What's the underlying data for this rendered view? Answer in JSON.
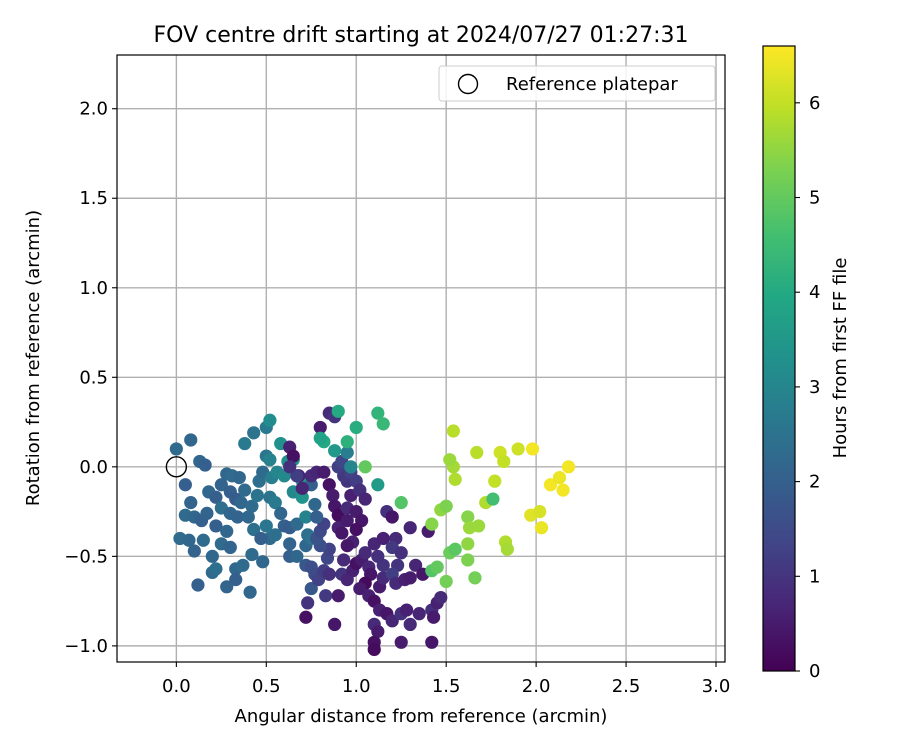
{
  "chart_data": {
    "type": "scatter",
    "title": "FOV centre drift starting at 2024/07/27 01:27:31",
    "xlabel": "Angular distance from reference (arcmin)",
    "ylabel": "Rotation from reference (arcmin)",
    "xlim": [
      -0.33,
      3.05
    ],
    "ylim": [
      -1.09,
      2.3
    ],
    "x_ticks": [
      0.0,
      0.5,
      1.0,
      1.5,
      2.0,
      2.5,
      3.0
    ],
    "x_tick_labels": [
      "0.0",
      "0.5",
      "1.0",
      "1.5",
      "2.0",
      "2.5",
      "3.0"
    ],
    "y_ticks": [
      -1.0,
      -0.5,
      0.0,
      0.5,
      1.0,
      1.5,
      2.0
    ],
    "y_tick_labels": [
      "−1.0",
      "−0.5",
      "0.0",
      "0.5",
      "1.0",
      "1.5",
      "2.0"
    ],
    "grid": true,
    "legend": {
      "placement": "upper right",
      "entries": [
        {
          "name": "Reference platepar",
          "marker": "open-circle"
        }
      ]
    },
    "reference_point": {
      "x": 0.0,
      "y": 0.0
    },
    "colorbar": {
      "label": "Hours from first FF file",
      "range": [
        0,
        6.6
      ],
      "ticks": [
        0,
        1,
        2,
        3,
        4,
        5,
        6
      ],
      "tick_labels": [
        "0",
        "1",
        "2",
        "3",
        "4",
        "5",
        "6"
      ],
      "colormap": "viridis",
      "stops": [
        "#440154",
        "#482475",
        "#414487",
        "#355f8d",
        "#2a788e",
        "#21918c",
        "#22a884",
        "#44bf70",
        "#7ad151",
        "#bddf26",
        "#fde725"
      ]
    },
    "points": [
      {
        "x": 0.0,
        "y": 0.1,
        "h": 2.3
      },
      {
        "x": 0.08,
        "y": 0.15,
        "h": 2.2
      },
      {
        "x": 0.13,
        "y": 0.03,
        "h": 2.2
      },
      {
        "x": 0.16,
        "y": 0.01,
        "h": 2.0
      },
      {
        "x": 0.05,
        "y": -0.1,
        "h": 2.0
      },
      {
        "x": 0.08,
        "y": -0.2,
        "h": 2.1
      },
      {
        "x": 0.05,
        "y": -0.27,
        "h": 2.3
      },
      {
        "x": 0.1,
        "y": -0.28,
        "h": 2.2
      },
      {
        "x": 0.02,
        "y": -0.4,
        "h": 2.3
      },
      {
        "x": 0.07,
        "y": -0.41,
        "h": 2.2
      },
      {
        "x": 0.1,
        "y": -0.47,
        "h": 2.1
      },
      {
        "x": 0.12,
        "y": -0.66,
        "h": 2.0
      },
      {
        "x": 0.2,
        "y": -0.59,
        "h": 2.3
      },
      {
        "x": 0.22,
        "y": -0.57,
        "h": 2.4
      },
      {
        "x": 0.15,
        "y": -0.41,
        "h": 2.3
      },
      {
        "x": 0.2,
        "y": -0.5,
        "h": 2.2
      },
      {
        "x": 0.14,
        "y": -0.3,
        "h": 2.0
      },
      {
        "x": 0.17,
        "y": -0.26,
        "h": 2.1
      },
      {
        "x": 0.18,
        "y": -0.14,
        "h": 2.2
      },
      {
        "x": 0.22,
        "y": -0.17,
        "h": 2.0
      },
      {
        "x": 0.25,
        "y": -0.1,
        "h": 2.1
      },
      {
        "x": 0.28,
        "y": -0.04,
        "h": 2.2
      },
      {
        "x": 0.31,
        "y": -0.05,
        "h": 2.3
      },
      {
        "x": 0.35,
        "y": -0.06,
        "h": 2.2
      },
      {
        "x": 0.3,
        "y": -0.14,
        "h": 2.0
      },
      {
        "x": 0.33,
        "y": -0.18,
        "h": 1.9
      },
      {
        "x": 0.36,
        "y": -0.2,
        "h": 2.2
      },
      {
        "x": 0.38,
        "y": -0.13,
        "h": 2.3
      },
      {
        "x": 0.25,
        "y": -0.23,
        "h": 2.4
      },
      {
        "x": 0.3,
        "y": -0.26,
        "h": 2.2
      },
      {
        "x": 0.34,
        "y": -0.28,
        "h": 2.1
      },
      {
        "x": 0.22,
        "y": -0.33,
        "h": 2.0
      },
      {
        "x": 0.28,
        "y": -0.36,
        "h": 2.2
      },
      {
        "x": 0.25,
        "y": -0.43,
        "h": 2.3
      },
      {
        "x": 0.3,
        "y": -0.45,
        "h": 2.1
      },
      {
        "x": 0.33,
        "y": -0.57,
        "h": 2.2
      },
      {
        "x": 0.37,
        "y": -0.55,
        "h": 2.3
      },
      {
        "x": 0.33,
        "y": -0.63,
        "h": 2.0
      },
      {
        "x": 0.28,
        "y": -0.67,
        "h": 2.1
      },
      {
        "x": 0.41,
        "y": -0.7,
        "h": 2.2
      },
      {
        "x": 0.42,
        "y": -0.49,
        "h": 2.3
      },
      {
        "x": 0.43,
        "y": -0.35,
        "h": 2.4
      },
      {
        "x": 0.4,
        "y": -0.28,
        "h": 2.2
      },
      {
        "x": 0.42,
        "y": -0.22,
        "h": 2.3
      },
      {
        "x": 0.45,
        "y": -0.16,
        "h": 2.5
      },
      {
        "x": 0.46,
        "y": -0.08,
        "h": 2.4
      },
      {
        "x": 0.48,
        "y": -0.03,
        "h": 2.3
      },
      {
        "x": 0.5,
        "y": 0.06,
        "h": 2.6
      },
      {
        "x": 0.52,
        "y": 0.04,
        "h": 2.9
      },
      {
        "x": 0.38,
        "y": 0.13,
        "h": 2.7
      },
      {
        "x": 0.43,
        "y": 0.19,
        "h": 2.5
      },
      {
        "x": 0.5,
        "y": 0.22,
        "h": 2.7
      },
      {
        "x": 0.52,
        "y": 0.26,
        "h": 3.2
      },
      {
        "x": 0.58,
        "y": 0.13,
        "h": 3.3
      },
      {
        "x": 0.53,
        "y": -0.06,
        "h": 2.8
      },
      {
        "x": 0.56,
        "y": -0.03,
        "h": 3.0
      },
      {
        "x": 0.6,
        "y": -0.05,
        "h": 3.1
      },
      {
        "x": 0.62,
        "y": 0.03,
        "h": 3.3
      },
      {
        "x": 0.65,
        "y": 0.04,
        "h": 3.4
      },
      {
        "x": 0.52,
        "y": -0.17,
        "h": 2.5
      },
      {
        "x": 0.55,
        "y": -0.2,
        "h": 2.7
      },
      {
        "x": 0.58,
        "y": -0.26,
        "h": 2.2
      },
      {
        "x": 0.5,
        "y": -0.33,
        "h": 2.6
      },
      {
        "x": 0.52,
        "y": -0.4,
        "h": 2.3
      },
      {
        "x": 0.55,
        "y": -0.38,
        "h": 2.4
      },
      {
        "x": 0.47,
        "y": -0.4,
        "h": 2.0
      },
      {
        "x": 0.48,
        "y": -0.53,
        "h": 2.2
      },
      {
        "x": 0.6,
        "y": -0.33,
        "h": 2.0
      },
      {
        "x": 0.63,
        "y": -0.34,
        "h": 1.9
      },
      {
        "x": 0.63,
        "y": -0.43,
        "h": 2.1
      },
      {
        "x": 0.67,
        "y": -0.32,
        "h": 2.3
      },
      {
        "x": 0.63,
        "y": -0.5,
        "h": 2.0
      },
      {
        "x": 0.67,
        "y": -0.5,
        "h": 2.2
      },
      {
        "x": 0.65,
        "y": -0.14,
        "h": 3.1
      },
      {
        "x": 0.7,
        "y": -0.17,
        "h": 3.4
      },
      {
        "x": 0.7,
        "y": -0.08,
        "h": 3.5
      },
      {
        "x": 0.72,
        "y": -0.28,
        "h": 2.9
      },
      {
        "x": 0.73,
        "y": -0.38,
        "h": 2.4
      },
      {
        "x": 0.72,
        "y": -0.44,
        "h": 2.2
      },
      {
        "x": 0.75,
        "y": -0.4,
        "h": 2.5
      },
      {
        "x": 0.72,
        "y": -0.55,
        "h": 1.8
      },
      {
        "x": 0.75,
        "y": -0.56,
        "h": 1.6
      },
      {
        "x": 0.77,
        "y": -0.6,
        "h": 1.5
      },
      {
        "x": 0.75,
        "y": -0.68,
        "h": 1.8
      },
      {
        "x": 0.73,
        "y": -0.76,
        "h": 1.0
      },
      {
        "x": 0.72,
        "y": -0.84,
        "h": 0.3
      },
      {
        "x": 0.79,
        "y": -0.63,
        "h": 1.3
      },
      {
        "x": 0.82,
        "y": -0.58,
        "h": 1.2
      },
      {
        "x": 0.84,
        "y": -0.51,
        "h": 1.4
      },
      {
        "x": 0.83,
        "y": -0.72,
        "h": 1.1
      },
      {
        "x": 0.85,
        "y": -0.6,
        "h": 0.9
      },
      {
        "x": 0.85,
        "y": -0.46,
        "h": 1.3
      },
      {
        "x": 0.8,
        "y": -0.44,
        "h": 1.6
      },
      {
        "x": 0.78,
        "y": -0.4,
        "h": 1.7
      },
      {
        "x": 0.8,
        "y": -0.36,
        "h": 1.5
      },
      {
        "x": 0.82,
        "y": -0.32,
        "h": 1.3
      },
      {
        "x": 0.78,
        "y": -0.28,
        "h": 2.0
      },
      {
        "x": 0.77,
        "y": -0.21,
        "h": 2.2
      },
      {
        "x": 0.75,
        "y": -0.1,
        "h": 2.0
      },
      {
        "x": 0.68,
        "y": -0.05,
        "h": 0.5
      },
      {
        "x": 0.7,
        "y": -0.12,
        "h": 0.7
      },
      {
        "x": 0.67,
        "y": -0.05,
        "h": 1.2
      },
      {
        "x": 0.63,
        "y": 0.11,
        "h": 0.6
      },
      {
        "x": 0.65,
        "y": 0.06,
        "h": 0.3
      },
      {
        "x": 0.63,
        "y": 0.0,
        "h": 0.9
      },
      {
        "x": 0.75,
        "y": -0.05,
        "h": 0.8
      },
      {
        "x": 0.78,
        "y": -0.03,
        "h": 0.7
      },
      {
        "x": 0.82,
        "y": -0.03,
        "h": 0.5
      },
      {
        "x": 0.85,
        "y": -0.1,
        "h": 0.3
      },
      {
        "x": 0.87,
        "y": -0.16,
        "h": 0.5
      },
      {
        "x": 0.88,
        "y": -0.22,
        "h": 0.4
      },
      {
        "x": 0.9,
        "y": -0.27,
        "h": 0.2
      },
      {
        "x": 0.9,
        "y": -0.34,
        "h": 0.6
      },
      {
        "x": 0.92,
        "y": -0.37,
        "h": 0.4
      },
      {
        "x": 0.95,
        "y": -0.3,
        "h": 0.5
      },
      {
        "x": 0.95,
        "y": -0.23,
        "h": 0.8
      },
      {
        "x": 0.97,
        "y": -0.16,
        "h": 0.6
      },
      {
        "x": 0.95,
        "y": -0.08,
        "h": 1.0
      },
      {
        "x": 0.93,
        "y": -0.05,
        "h": 1.1
      },
      {
        "x": 0.97,
        "y": -0.03,
        "h": 1.3
      },
      {
        "x": 0.9,
        "y": 0.0,
        "h": 1.2
      },
      {
        "x": 0.92,
        "y": 0.03,
        "h": 1.4
      },
      {
        "x": 0.95,
        "y": 0.08,
        "h": 2.8
      },
      {
        "x": 0.97,
        "y": 0.0,
        "h": 3.0
      },
      {
        "x": 0.8,
        "y": 0.22,
        "h": 0.5
      },
      {
        "x": 0.85,
        "y": 0.3,
        "h": 0.8
      },
      {
        "x": 0.88,
        "y": 0.28,
        "h": 1.0
      },
      {
        "x": 0.82,
        "y": 0.14,
        "h": 4.0
      },
      {
        "x": 0.8,
        "y": 0.16,
        "h": 3.8
      },
      {
        "x": 0.88,
        "y": 0.09,
        "h": 3.5
      },
      {
        "x": 0.9,
        "y": 0.31,
        "h": 4.0
      },
      {
        "x": 0.95,
        "y": 0.14,
        "h": 4.2
      },
      {
        "x": 1.0,
        "y": 0.22,
        "h": 4.1
      },
      {
        "x": 1.05,
        "y": 0.0,
        "h": 5.0
      },
      {
        "x": 1.12,
        "y": 0.3,
        "h": 4.3
      },
      {
        "x": 1.15,
        "y": 0.24,
        "h": 4.4
      },
      {
        "x": 1.12,
        "y": -0.1,
        "h": 3.6
      },
      {
        "x": 1.0,
        "y": -0.08,
        "h": 1.2
      },
      {
        "x": 1.02,
        "y": -0.13,
        "h": 0.9
      },
      {
        "x": 1.05,
        "y": -0.18,
        "h": 0.7
      },
      {
        "x": 1.0,
        "y": -0.25,
        "h": 0.5
      },
      {
        "x": 1.03,
        "y": -0.3,
        "h": 0.4
      },
      {
        "x": 1.0,
        "y": -0.35,
        "h": 0.3
      },
      {
        "x": 0.98,
        "y": -0.42,
        "h": 0.6
      },
      {
        "x": 0.95,
        "y": -0.44,
        "h": 0.4
      },
      {
        "x": 0.93,
        "y": -0.52,
        "h": 0.8
      },
      {
        "x": 0.92,
        "y": -0.6,
        "h": 1.0
      },
      {
        "x": 0.95,
        "y": -0.63,
        "h": 0.7
      },
      {
        "x": 0.9,
        "y": -0.72,
        "h": 0.5
      },
      {
        "x": 0.88,
        "y": -0.88,
        "h": 0.4
      },
      {
        "x": 0.98,
        "y": -0.58,
        "h": 0.6
      },
      {
        "x": 1.0,
        "y": -0.54,
        "h": 0.3
      },
      {
        "x": 1.03,
        "y": -0.52,
        "h": 0.5
      },
      {
        "x": 1.05,
        "y": -0.48,
        "h": 0.8
      },
      {
        "x": 1.07,
        "y": -0.56,
        "h": 0.7
      },
      {
        "x": 1.08,
        "y": -0.6,
        "h": 0.4
      },
      {
        "x": 1.05,
        "y": -0.65,
        "h": 0.2
      },
      {
        "x": 1.02,
        "y": -0.68,
        "h": 0.5
      },
      {
        "x": 1.07,
        "y": -0.72,
        "h": 0.6
      },
      {
        "x": 1.1,
        "y": -0.75,
        "h": 0.3
      },
      {
        "x": 1.13,
        "y": -0.67,
        "h": 0.5
      },
      {
        "x": 1.15,
        "y": -0.62,
        "h": 0.8
      },
      {
        "x": 1.15,
        "y": -0.55,
        "h": 1.0
      },
      {
        "x": 1.12,
        "y": -0.5,
        "h": 0.9
      },
      {
        "x": 1.1,
        "y": -0.43,
        "h": 0.7
      },
      {
        "x": 1.15,
        "y": -0.4,
        "h": 0.6
      },
      {
        "x": 1.17,
        "y": -0.25,
        "h": 0.9
      },
      {
        "x": 1.2,
        "y": -0.28,
        "h": 0.4
      },
      {
        "x": 1.22,
        "y": -0.4,
        "h": 0.8
      },
      {
        "x": 1.2,
        "y": -0.45,
        "h": 1.1
      },
      {
        "x": 1.25,
        "y": -0.48,
        "h": 0.9
      },
      {
        "x": 1.23,
        "y": -0.55,
        "h": 1.0
      },
      {
        "x": 1.2,
        "y": -0.6,
        "h": 1.2
      },
      {
        "x": 1.22,
        "y": -0.65,
        "h": 0.8
      },
      {
        "x": 1.27,
        "y": -0.63,
        "h": 0.6
      },
      {
        "x": 1.3,
        "y": -0.62,
        "h": 0.5
      },
      {
        "x": 1.33,
        "y": -0.55,
        "h": 0.7
      },
      {
        "x": 1.37,
        "y": -0.6,
        "h": 0.4
      },
      {
        "x": 1.13,
        "y": -0.8,
        "h": 0.6
      },
      {
        "x": 1.17,
        "y": -0.82,
        "h": 0.4
      },
      {
        "x": 1.2,
        "y": -0.86,
        "h": 0.7
      },
      {
        "x": 1.1,
        "y": -0.88,
        "h": 0.8
      },
      {
        "x": 1.12,
        "y": -0.92,
        "h": 0.5
      },
      {
        "x": 1.1,
        "y": -0.98,
        "h": 0.3
      },
      {
        "x": 1.1,
        "y": -1.02,
        "h": 0.2
      },
      {
        "x": 1.25,
        "y": -0.82,
        "h": 0.9
      },
      {
        "x": 1.28,
        "y": -0.8,
        "h": 0.6
      },
      {
        "x": 1.3,
        "y": -0.88,
        "h": 0.8
      },
      {
        "x": 1.25,
        "y": -0.98,
        "h": 0.5
      },
      {
        "x": 1.35,
        "y": -0.82,
        "h": 0.7
      },
      {
        "x": 1.42,
        "y": -0.8,
        "h": 0.9
      },
      {
        "x": 1.45,
        "y": -0.76,
        "h": 0.6
      },
      {
        "x": 1.47,
        "y": -0.73,
        "h": 0.8
      },
      {
        "x": 1.43,
        "y": -0.84,
        "h": 0.5
      },
      {
        "x": 1.42,
        "y": -0.98,
        "h": 0.4
      },
      {
        "x": 1.3,
        "y": -0.34,
        "h": 0.7
      },
      {
        "x": 1.4,
        "y": -0.36,
        "h": 0.5
      },
      {
        "x": 1.42,
        "y": -0.58,
        "h": 4.8
      },
      {
        "x": 1.45,
        "y": -0.56,
        "h": 5.0
      },
      {
        "x": 1.5,
        "y": -0.64,
        "h": 5.2
      },
      {
        "x": 1.25,
        "y": -0.2,
        "h": 4.8
      },
      {
        "x": 1.42,
        "y": -0.32,
        "h": 5.4
      },
      {
        "x": 1.47,
        "y": -0.24,
        "h": 5.5
      },
      {
        "x": 1.5,
        "y": -0.22,
        "h": 5.3
      },
      {
        "x": 1.52,
        "y": -0.48,
        "h": 5.1
      },
      {
        "x": 1.55,
        "y": -0.46,
        "h": 4.9
      },
      {
        "x": 1.62,
        "y": -0.28,
        "h": 5.4
      },
      {
        "x": 1.63,
        "y": -0.34,
        "h": 5.6
      },
      {
        "x": 1.68,
        "y": -0.33,
        "h": 5.6
      },
      {
        "x": 1.62,
        "y": -0.52,
        "h": 5.3
      },
      {
        "x": 1.66,
        "y": -0.62,
        "h": 5.2
      },
      {
        "x": 1.62,
        "y": -0.43,
        "h": 5.5
      },
      {
        "x": 1.55,
        "y": -0.07,
        "h": 5.8
      },
      {
        "x": 1.54,
        "y": 0.0,
        "h": 5.7
      },
      {
        "x": 1.52,
        "y": 0.04,
        "h": 5.6
      },
      {
        "x": 1.54,
        "y": 0.2,
        "h": 5.9
      },
      {
        "x": 1.67,
        "y": 0.08,
        "h": 5.9
      },
      {
        "x": 1.72,
        "y": -0.2,
        "h": 5.8
      },
      {
        "x": 1.77,
        "y": -0.08,
        "h": 6.0
      },
      {
        "x": 1.76,
        "y": -0.18,
        "h": 4.6
      },
      {
        "x": 1.8,
        "y": 0.08,
        "h": 6.1
      },
      {
        "x": 1.82,
        "y": 0.03,
        "h": 6.0
      },
      {
        "x": 1.83,
        "y": -0.42,
        "h": 5.8
      },
      {
        "x": 1.84,
        "y": -0.46,
        "h": 5.7
      },
      {
        "x": 1.9,
        "y": 0.1,
        "h": 6.1
      },
      {
        "x": 1.98,
        "y": 0.1,
        "h": 6.5
      },
      {
        "x": 1.97,
        "y": -0.27,
        "h": 6.3
      },
      {
        "x": 2.02,
        "y": -0.25,
        "h": 6.2
      },
      {
        "x": 2.03,
        "y": -0.34,
        "h": 6.4
      },
      {
        "x": 2.08,
        "y": -0.1,
        "h": 6.5
      },
      {
        "x": 2.13,
        "y": -0.06,
        "h": 6.4
      },
      {
        "x": 2.15,
        "y": -0.13,
        "h": 6.5
      },
      {
        "x": 2.18,
        "y": 0.0,
        "h": 6.5
      }
    ]
  }
}
